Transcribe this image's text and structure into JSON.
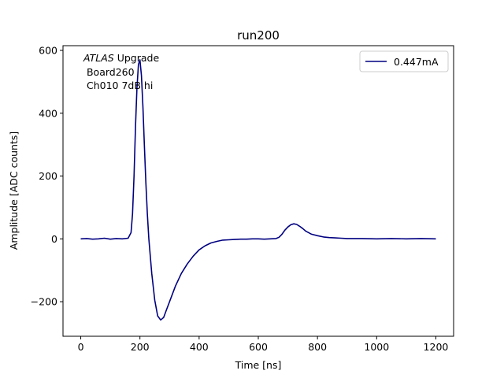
{
  "chart_data": {
    "type": "line",
    "title": "run200",
    "xlabel": "Time [ns]",
    "ylabel": "Amplitude [ADC counts]",
    "xlim": [
      -60,
      1260
    ],
    "ylim": [
      -310,
      615
    ],
    "x_ticks": [
      0,
      200,
      400,
      600,
      800,
      1000,
      1200
    ],
    "x_tick_labels": [
      "0",
      "200",
      "400",
      "600",
      "800",
      "1000",
      "1200"
    ],
    "y_ticks": [
      -200,
      0,
      200,
      400,
      600
    ],
    "y_tick_labels": [
      "−200",
      "0",
      "200",
      "400",
      "600"
    ],
    "grid": false,
    "legend_position": "upper-right",
    "annotation": {
      "italic": "ATLAS",
      "rest": " Upgrade",
      "line2": " Board260",
      "line3": " Ch010 7dB hi"
    },
    "series": [
      {
        "name": "0.447mA",
        "color": "#000080",
        "x": [
          0,
          20,
          40,
          60,
          80,
          100,
          120,
          140,
          160,
          170,
          175,
          180,
          185,
          190,
          195,
          200,
          205,
          210,
          215,
          220,
          225,
          230,
          240,
          250,
          260,
          270,
          280,
          290,
          300,
          320,
          340,
          360,
          380,
          400,
          420,
          440,
          460,
          480,
          500,
          520,
          540,
          560,
          580,
          600,
          620,
          640,
          660,
          670,
          680,
          690,
          700,
          710,
          720,
          730,
          740,
          750,
          760,
          770,
          780,
          800,
          820,
          840,
          860,
          880,
          900,
          950,
          1000,
          1050,
          1100,
          1150,
          1200
        ],
        "y": [
          0,
          1,
          -1,
          0,
          2,
          -1,
          1,
          0,
          2,
          20,
          80,
          200,
          360,
          480,
          555,
          570,
          520,
          420,
          300,
          180,
          80,
          0,
          -110,
          -195,
          -245,
          -258,
          -250,
          -225,
          -200,
          -150,
          -110,
          -80,
          -55,
          -35,
          -22,
          -13,
          -8,
          -4,
          -3,
          -2,
          -1,
          -1,
          0,
          0,
          -1,
          0,
          1,
          5,
          15,
          28,
          38,
          45,
          48,
          46,
          40,
          33,
          25,
          20,
          15,
          10,
          6,
          4,
          3,
          2,
          1,
          1,
          0,
          1,
          0,
          1,
          0
        ]
      }
    ]
  }
}
